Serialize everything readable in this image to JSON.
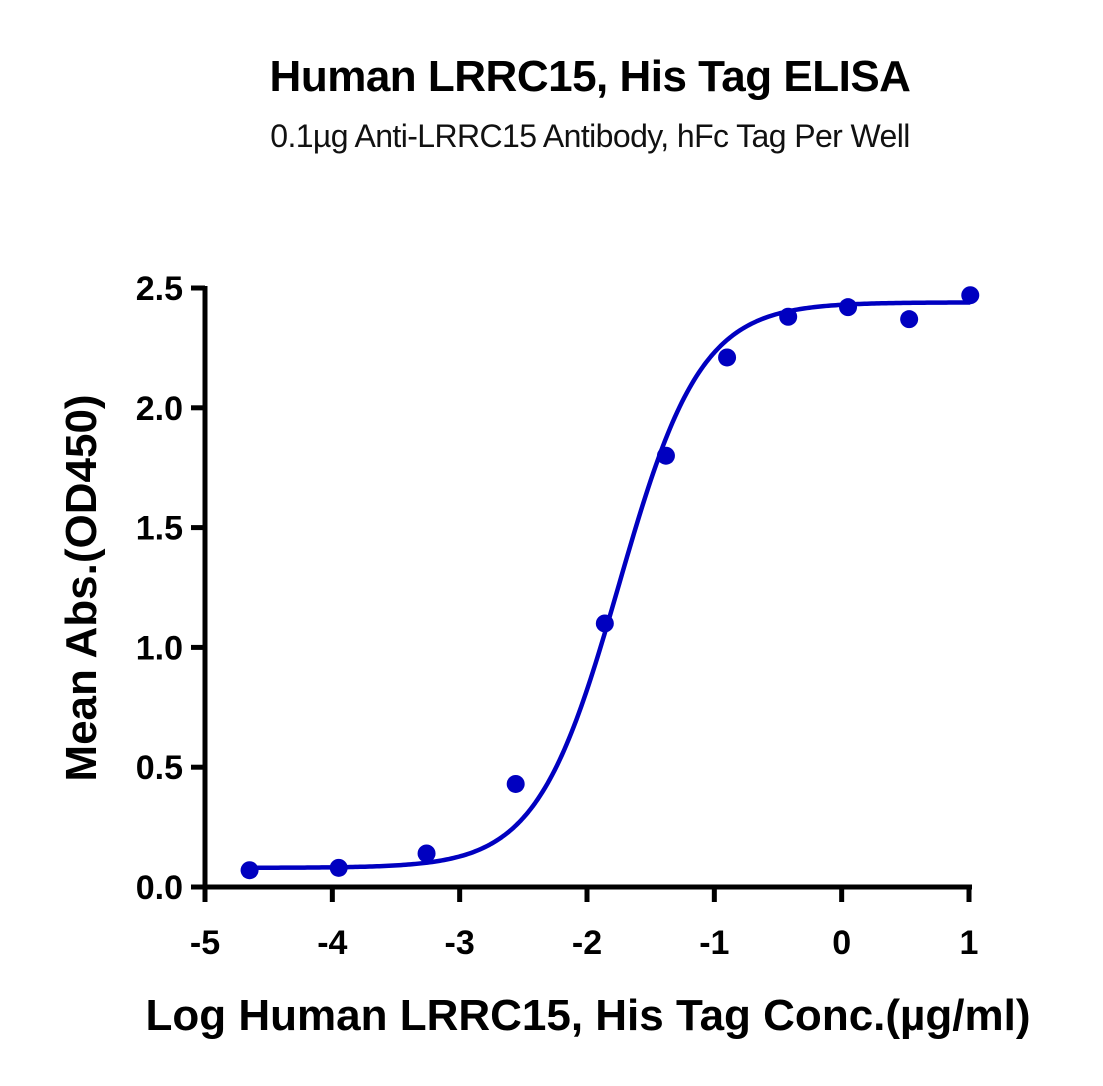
{
  "header": {
    "title": "Human LRRC15, His Tag ELISA",
    "subtitle": "0.1µg Anti-LRRC15 Antibody, hFc Tag Per Well"
  },
  "colors": {
    "series": "#0000c0",
    "axis": "#000000"
  },
  "chart_data": {
    "type": "scatter",
    "title": "Human LRRC15, His Tag ELISA",
    "subtitle": "0.1µg Anti-LRRC15 Antibody, hFc Tag Per Well",
    "xlabel": "Log Human LRRC15, His Tag Conc.(µg/ml)",
    "ylabel": "Mean Abs.(OD450)",
    "xlim": [
      -5,
      1
    ],
    "ylim": [
      0,
      2.5
    ],
    "xticks": [
      "-5",
      "-4",
      "-3",
      "-2",
      "-1",
      "0",
      "1"
    ],
    "yticks": [
      "0.0",
      "0.5",
      "1.0",
      "1.5",
      "2.0",
      "2.5"
    ],
    "grid": false,
    "legend": null,
    "series": [
      {
        "name": "Mean Abs.",
        "marker": "circle",
        "fit": "4PL sigmoidal curve",
        "x": [
          -4.65,
          -3.95,
          -3.26,
          -2.56,
          -1.86,
          -1.38,
          -0.9,
          -0.42,
          0.05,
          0.53,
          1.01
        ],
        "y": [
          0.07,
          0.08,
          0.14,
          0.43,
          1.1,
          1.8,
          2.21,
          2.38,
          2.42,
          2.37,
          2.47
        ]
      }
    ],
    "fit_params": {
      "bottom": 0.08,
      "top": 2.44,
      "logEC50": -1.75,
      "hill": 1.35
    }
  }
}
